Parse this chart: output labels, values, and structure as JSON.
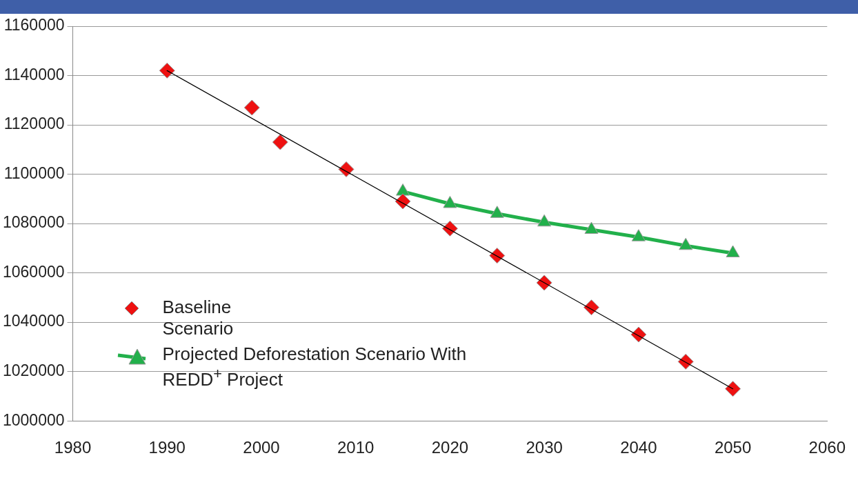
{
  "chart_data": {
    "type": "scatter",
    "series": [
      {
        "name": "Baseline Scenario",
        "type": "scatter",
        "marker": "diamond",
        "color": "#ee1111",
        "x": [
          1990,
          1999,
          2002,
          2009,
          2015,
          2020,
          2025,
          2030,
          2035,
          2040,
          2045,
          2050
        ],
        "values": [
          1142000,
          1127000,
          1113000,
          1102000,
          1089000,
          1078000,
          1067000,
          1056000,
          1046000,
          1035000,
          1024000,
          1013000
        ]
      },
      {
        "type": "line",
        "marker": "none",
        "color": "#000000",
        "x": [
          1990,
          2050
        ],
        "values": [
          1142000,
          1013000
        ]
      },
      {
        "name": "Projected Deforestation Scenario With REDD$^{+}$ Project",
        "type": "line",
        "marker": "triangle",
        "color": "#22b04b",
        "x": [
          2015,
          2020,
          2025,
          2030,
          2035,
          2040,
          2045,
          2050
        ],
        "values": [
          1093000,
          1088000,
          1084000,
          1080500,
          1077500,
          1074500,
          1071000,
          1068000
        ]
      }
    ],
    "xlim": [
      1980,
      2060
    ],
    "xticks": [
      1980,
      1990,
      2000,
      2010,
      2020,
      2030,
      2040,
      2050,
      2060
    ],
    "ylim": [
      1000000,
      1160000
    ],
    "yticks": [
      1000000,
      1020000,
      1040000,
      1060000,
      1080000,
      1100000,
      1120000,
      1140000,
      1160000
    ],
    "grid": "y",
    "legend": "bottom left"
  }
}
